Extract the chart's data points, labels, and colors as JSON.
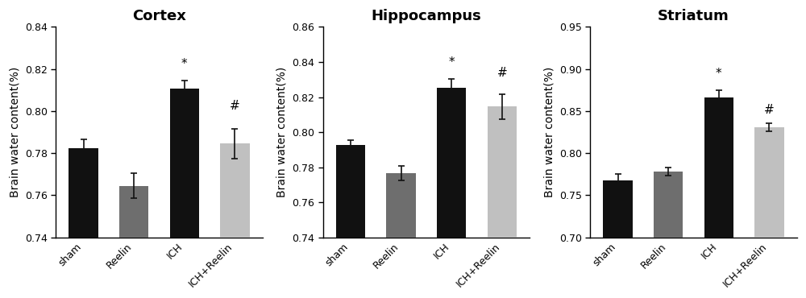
{
  "panels": [
    {
      "title": "Cortex",
      "ylabel": "Brain water content(%)",
      "ylim": [
        0.74,
        0.84
      ],
      "yticks": [
        0.74,
        0.76,
        0.78,
        0.8,
        0.82,
        0.84
      ],
      "categories": [
        "sham",
        "Reelin",
        "ICH",
        "ICH+Reelin"
      ],
      "values": [
        0.7825,
        0.7645,
        0.8105,
        0.7845
      ],
      "errors": [
        0.004,
        0.006,
        0.004,
        0.007
      ],
      "bar_colors": [
        "#111111",
        "#6e6e6e",
        "#111111",
        "#c0c0c0"
      ],
      "sig_labels": [
        "",
        "",
        "*",
        "#"
      ],
      "sig_bar_indices": [
        2,
        3
      ],
      "sig_offsets": [
        0.005,
        0.008
      ]
    },
    {
      "title": "Hippocampus",
      "ylabel": "Brain water content(%)",
      "ylim": [
        0.74,
        0.86
      ],
      "yticks": [
        0.74,
        0.76,
        0.78,
        0.8,
        0.82,
        0.84,
        0.86
      ],
      "categories": [
        "sham",
        "Reelin",
        "ICH",
        "ICH+Reelin"
      ],
      "values": [
        0.7925,
        0.7765,
        0.8255,
        0.8145
      ],
      "errors": [
        0.003,
        0.004,
        0.005,
        0.007
      ],
      "bar_colors": [
        "#111111",
        "#6e6e6e",
        "#111111",
        "#c0c0c0"
      ],
      "sig_labels": [
        "",
        "",
        "*",
        "#"
      ],
      "sig_bar_indices": [
        2,
        3
      ],
      "sig_offsets": [
        0.006,
        0.009
      ]
    },
    {
      "title": "Striatum",
      "ylabel": "Brain water content(%)",
      "ylim": [
        0.7,
        0.95
      ],
      "yticks": [
        0.7,
        0.75,
        0.8,
        0.85,
        0.9,
        0.95
      ],
      "categories": [
        "sham",
        "Reelin",
        "ICH",
        "ICH+Reelin"
      ],
      "values": [
        0.768,
        0.778,
        0.866,
        0.831
      ],
      "errors": [
        0.007,
        0.005,
        0.009,
        0.005
      ],
      "bar_colors": [
        "#111111",
        "#6e6e6e",
        "#111111",
        "#c0c0c0"
      ],
      "sig_labels": [
        "",
        "",
        "*",
        "#"
      ],
      "sig_bar_indices": [
        2,
        3
      ],
      "sig_offsets": [
        0.012,
        0.008
      ]
    }
  ],
  "background_color": "#ffffff",
  "title_fontsize": 13,
  "label_fontsize": 10,
  "tick_fontsize": 9,
  "bar_width": 0.58,
  "capsize": 3,
  "error_linewidth": 1.2,
  "sig_fontsize": 11
}
